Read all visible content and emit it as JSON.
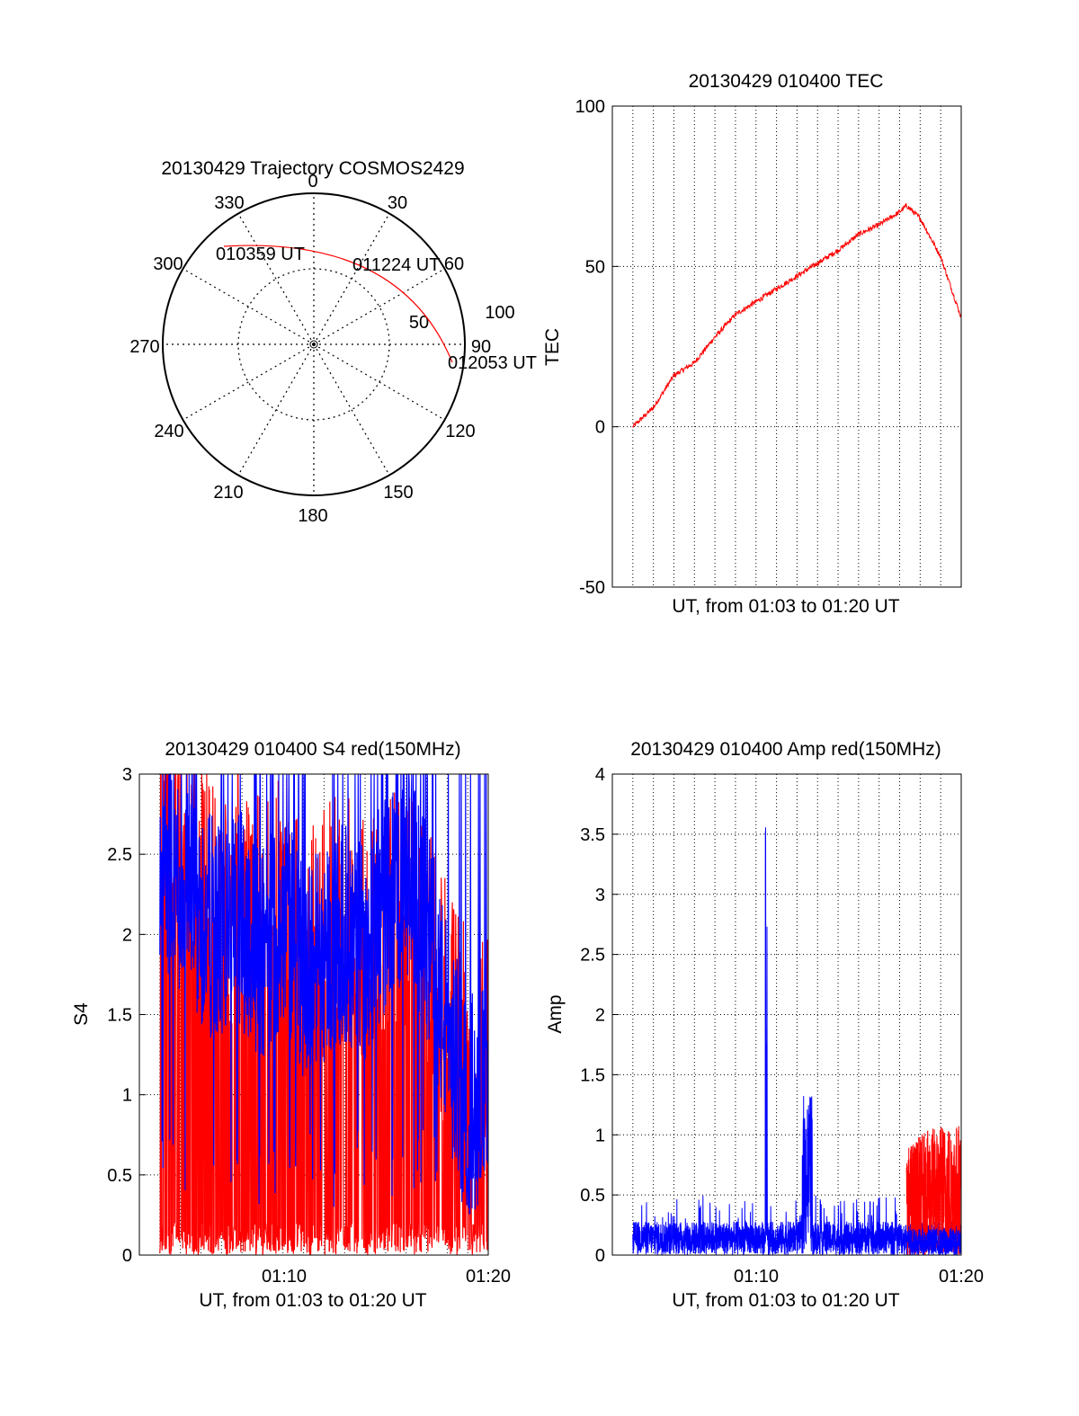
{
  "polar": {
    "title": "20130429 Trajectory COSMOS2429",
    "azimuth_labels": [
      "0",
      "30",
      "60",
      "90",
      "120",
      "150",
      "180",
      "210",
      "240",
      "270",
      "300",
      "330"
    ],
    "elevation_rings": [
      50,
      100
    ],
    "ring_labels": [
      "50",
      "100"
    ],
    "trajectory_labels": [
      "010359 UT",
      "011224 UT",
      "012053 UT"
    ],
    "trajectory": {
      "start": {
        "az": 292,
        "el": 0
      },
      "mid": {
        "az": 45,
        "el": 25
      },
      "end": {
        "az": 88,
        "el": 5
      }
    },
    "colors": {
      "trajectory": "#ff0000"
    }
  },
  "chart_data": [
    {
      "type": "line",
      "title": "20130429 010400 TEC",
      "xlabel": "UT, from 01:03 to 01:20 UT",
      "ylabel": "TEC",
      "ylim": [
        -50,
        100
      ],
      "xlim": [
        "01:03",
        "01:20"
      ],
      "yticks": [
        "100",
        "50",
        "0",
        "-50"
      ],
      "xticks": [],
      "grid": true,
      "series": [
        {
          "color": "#ff0000",
          "x": [
            "01:04:00",
            "01:05:00",
            "01:06:00",
            "01:07:00",
            "01:08:00",
            "01:09:00",
            "01:10:00",
            "01:11:00",
            "01:12:00",
            "01:13:00",
            "01:14:00",
            "01:15:00",
            "01:16:00",
            "01:17:00",
            "01:17:20",
            "01:18:00",
            "01:19:00",
            "01:20:00"
          ],
          "y": [
            0,
            6,
            16,
            20,
            28,
            35,
            39,
            43,
            47,
            51,
            55,
            60,
            63,
            67,
            69,
            65,
            53,
            34
          ]
        }
      ]
    },
    {
      "type": "line",
      "title": "20130429 010400 S4 red(150MHz)",
      "xlabel": "UT, from 01:03 to 01:20 UT",
      "ylabel": "S4",
      "ylim": [
        0,
        3
      ],
      "xlim": [
        "01:03",
        "01:20"
      ],
      "yticks": [
        "3",
        "2.5",
        "2",
        "1.5",
        "1",
        "0.5",
        "0"
      ],
      "xticks": [
        "01:10",
        "01:20"
      ],
      "grid": true,
      "series": [
        {
          "color": "#ff0000",
          "style": "dense-oscillation",
          "x": [
            "01:04",
            "01:05",
            "01:06",
            "01:07",
            "01:08",
            "01:09",
            "01:10",
            "01:11",
            "01:12",
            "01:13",
            "01:14",
            "01:15",
            "01:16",
            "01:17",
            "01:18",
            "01:19",
            "01:20"
          ],
          "y": [
            3,
            2.2,
            2.0,
            1.8,
            2.0,
            1.7,
            2.0,
            1.5,
            1.7,
            1.8,
            1.6,
            1.8,
            1.8,
            1.6,
            1.2,
            0.9,
            1.1
          ]
        },
        {
          "color": "#0000ff",
          "style": "dense-oscillation",
          "x": [
            "01:04",
            "01:05",
            "01:06",
            "01:07",
            "01:08",
            "01:09",
            "01:10",
            "01:11",
            "01:12",
            "01:13",
            "01:14",
            "01:15",
            "01:16",
            "01:17",
            "01:18",
            "01:19",
            "01:20"
          ],
          "y": [
            2.5,
            2.3,
            2.1,
            2.0,
            2.1,
            1.9,
            2.1,
            1.8,
            1.9,
            2.0,
            1.9,
            2.2,
            2.4,
            2.0,
            1.4,
            0.9,
            1.1
          ]
        }
      ]
    },
    {
      "type": "line",
      "title": "20130429 010400 Amp red(150MHz)",
      "xlabel": "UT, from 01:03 to 01:20 UT",
      "ylabel": "Amp",
      "ylim": [
        0,
        4
      ],
      "xlim": [
        "01:03",
        "01:20"
      ],
      "yticks": [
        "4",
        "3.5",
        "3",
        "2.5",
        "2",
        "1.5",
        "1",
        "0.5",
        "0"
      ],
      "xticks": [
        "01:10",
        "01:20"
      ],
      "grid": true,
      "series": [
        {
          "color": "#0000ff",
          "style": "noise",
          "x": [
            "01:04",
            "01:05",
            "01:06",
            "01:07",
            "01:08",
            "01:09",
            "01:10",
            "01:10:30",
            "01:11",
            "01:12",
            "01:12:30",
            "01:13",
            "01:14",
            "01:15",
            "01:16",
            "01:17",
            "01:18",
            "01:19",
            "01:20"
          ],
          "y": [
            0.25,
            0.3,
            0.3,
            0.3,
            0.35,
            0.3,
            0.3,
            3.6,
            0.3,
            0.3,
            1.4,
            0.3,
            0.3,
            0.3,
            0.3,
            0.25,
            0.2,
            0.2,
            0.2
          ]
        },
        {
          "color": "#ff0000",
          "style": "noise",
          "x": [
            "01:17:20",
            "01:18",
            "01:19",
            "01:20"
          ],
          "y": [
            0.9,
            1.0,
            1.1,
            1.1
          ]
        }
      ]
    }
  ]
}
